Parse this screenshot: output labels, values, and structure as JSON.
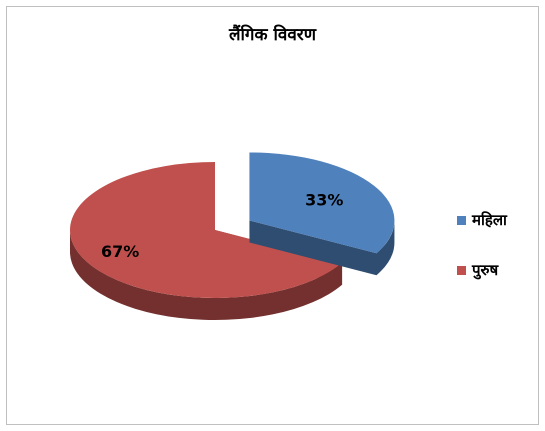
{
  "chart_data": {
    "type": "pie",
    "title": "लैंगिक विवरण",
    "slices": [
      {
        "label": "महिला",
        "value": 33,
        "data_label": "33%",
        "color": "#4f81bd",
        "exploded": true
      },
      {
        "label": "पुरुष",
        "value": 67,
        "data_label": "67%",
        "color": "#c0504d",
        "exploded": false
      }
    ],
    "style": "3d",
    "legend_position": "right"
  }
}
